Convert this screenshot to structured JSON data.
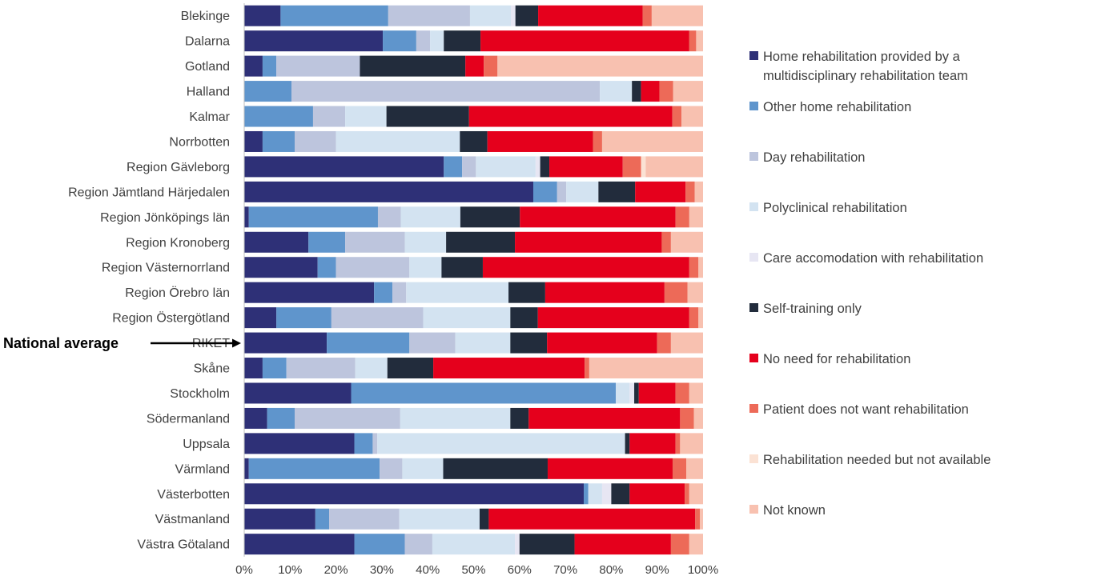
{
  "chart_data": {
    "type": "bar",
    "orientation": "horizontal",
    "stacked": "percent",
    "categories": [
      "Blekinge",
      "Dalarna",
      "Gotland",
      "Halland",
      "Kalmar",
      "Norrbotten",
      "Region Gävleborg",
      "Region Jämtland Härjedalen",
      "Region Jönköpings län",
      "Region Kronoberg",
      "Region Västernorrland",
      "Region Örebro län",
      "Region Östergötland",
      "RIKET",
      "Skåne",
      "Stockholm",
      "Södermanland",
      "Uppsala",
      "Värmland",
      "Västerbotten",
      "Västmanland",
      "Västra Götaland"
    ],
    "series": [
      {
        "name": "Home rehabilitation provided by a multidisciplinary rehabilitation team",
        "color": "#2e3077",
        "values": [
          8,
          30.2,
          4,
          0,
          0,
          4,
          43.5,
          63,
          1,
          14,
          16,
          28.3,
          7,
          18,
          4,
          23.3,
          5,
          24,
          1,
          74,
          15.5,
          24
        ]
      },
      {
        "name": "Other home rehabilitation",
        "color": "#5f95cc",
        "values": [
          23.7,
          7.3,
          3,
          10.3,
          15,
          7,
          4,
          5.2,
          28.2,
          8,
          4,
          4,
          12,
          18,
          5.2,
          57.7,
          6,
          4,
          28.8,
          1,
          3,
          11
        ]
      },
      {
        "name": "Day rehabilitation",
        "color": "#bdc5dd",
        "values": [
          18,
          3,
          18.2,
          67.2,
          7,
          9,
          3,
          2,
          5,
          13,
          16,
          3,
          20,
          10,
          15,
          0,
          23,
          1,
          5,
          0,
          15.3,
          6
        ]
      },
      {
        "name": "Polyclinical rehabilitation",
        "color": "#d3e3f1",
        "values": [
          9,
          3,
          0,
          7,
          9,
          27,
          13,
          7,
          13,
          9,
          7,
          22.3,
          19,
          12,
          7,
          3,
          24,
          54,
          9,
          3,
          17.5,
          18
        ]
      },
      {
        "name": "Care accomodation with rehabilitation",
        "color": "#e7e6f3",
        "values": [
          1,
          0,
          0,
          0,
          0,
          0,
          1,
          0,
          0,
          0,
          0,
          0,
          0,
          0,
          0,
          1,
          0,
          0,
          0,
          2,
          0,
          1
        ]
      },
      {
        "name": "Self-training only",
        "color": "#222c3c",
        "values": [
          5,
          8,
          23,
          2,
          18,
          6,
          2,
          8,
          13,
          15,
          9,
          8,
          6,
          8,
          10,
          1,
          4,
          1,
          23,
          4,
          2,
          12
        ]
      },
      {
        "name": "No need for rehabilitation",
        "color": "#e5001c",
        "values": [
          23,
          45.5,
          4,
          4,
          44.3,
          23,
          16,
          11,
          34,
          32,
          45,
          26,
          33,
          24,
          33,
          8,
          33,
          10,
          27.5,
          12,
          45,
          21
        ]
      },
      {
        "name": "Patient does not want rehabilitation",
        "color": "#ed6a58",
        "values": [
          2,
          1.5,
          3,
          3,
          2,
          2,
          4,
          2,
          3,
          2,
          2,
          5,
          2,
          3,
          1,
          3,
          3,
          1,
          3,
          1,
          1,
          4
        ]
      },
      {
        "name": "Rehabilitation needed but not available",
        "color": "#fbe2d4",
        "values": [
          0,
          0,
          0,
          0,
          0,
          0,
          1,
          0,
          0,
          0,
          0,
          0,
          0,
          0,
          0,
          0,
          0,
          0,
          0,
          0,
          0,
          0
        ]
      },
      {
        "name": "Not known",
        "color": "#f8c1b0",
        "values": [
          11.3,
          1.5,
          44.8,
          6.5,
          4.7,
          22,
          12.5,
          1.8,
          3,
          7,
          1,
          3.4,
          1,
          7,
          24.8,
          3,
          2,
          5,
          3.7,
          3,
          0.7,
          3
        ]
      }
    ],
    "x_ticks": [
      "0%",
      "10%",
      "20%",
      "30%",
      "40%",
      "50%",
      "60%",
      "70%",
      "80%",
      "90%",
      "100%"
    ],
    "xlim": [
      0,
      100
    ],
    "grid": false,
    "legend_position": "right"
  },
  "annotation": {
    "text": "National average",
    "target": "RIKET"
  }
}
